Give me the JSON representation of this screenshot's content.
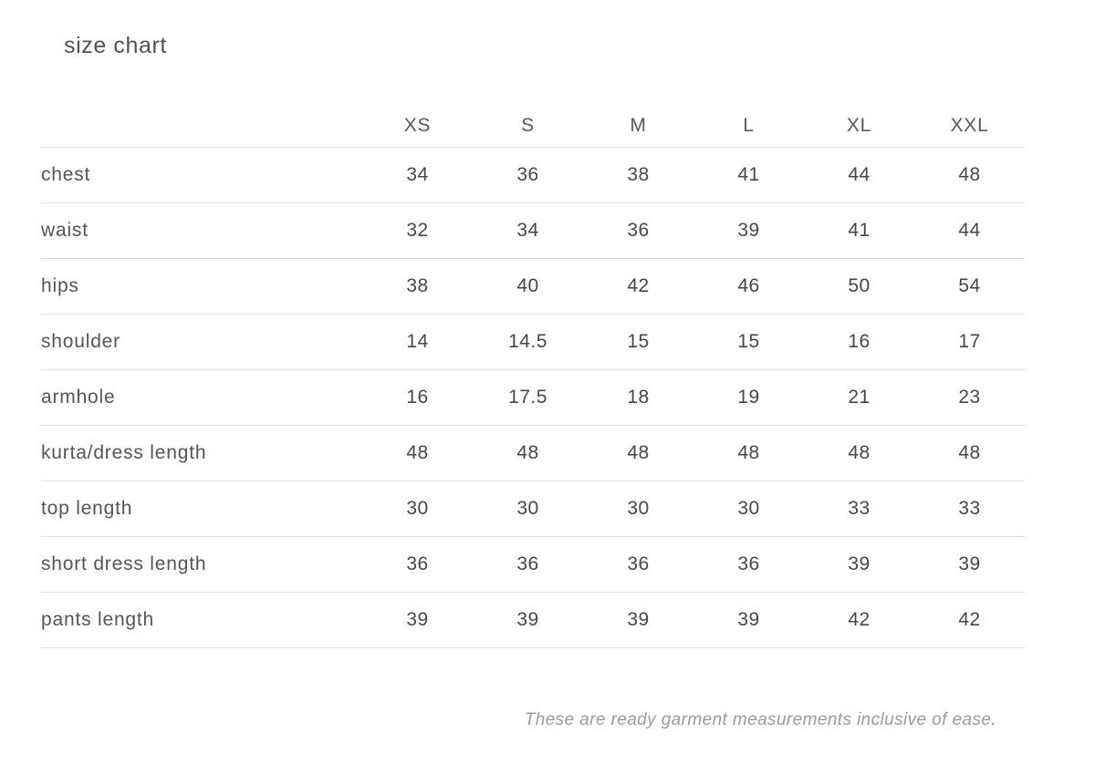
{
  "page": {
    "title": "size chart",
    "footnote": "These are ready garment measurements inclusive of ease."
  },
  "colors": {
    "background": "#ffffff",
    "title_text": "#525252",
    "header_text": "#595959",
    "label_text": "#555555",
    "value_text": "#474747",
    "divider_line": "#e0e0e0",
    "footnote_text": "#9b9b9b"
  },
  "chart_data": {
    "type": "table",
    "title": "size chart",
    "columns": [
      "XS",
      "S",
      "M",
      "L",
      "XL",
      "XXL"
    ],
    "rows": [
      {
        "label": "chest",
        "values": [
          "34",
          "36",
          "38",
          "41",
          "44",
          "48"
        ]
      },
      {
        "label": "waist",
        "values": [
          "32",
          "34",
          "36",
          "39",
          "41",
          "44"
        ]
      },
      {
        "label": "hips",
        "values": [
          "38",
          "40",
          "42",
          "46",
          "50",
          "54"
        ]
      },
      {
        "label": "shoulder",
        "values": [
          "14",
          "14.5",
          "15",
          "15",
          "16",
          "17"
        ]
      },
      {
        "label": "armhole",
        "values": [
          "16",
          "17.5",
          "18",
          "19",
          "21",
          "23"
        ]
      },
      {
        "label": "kurta/dress length",
        "values": [
          "48",
          "48",
          "48",
          "48",
          "48",
          "48"
        ]
      },
      {
        "label": "top length",
        "values": [
          "30",
          "30",
          "30",
          "30",
          "33",
          "33"
        ]
      },
      {
        "label": "short dress length",
        "values": [
          "36",
          "36",
          "36",
          "36",
          "39",
          "39"
        ]
      },
      {
        "label": "pants length",
        "values": [
          "39",
          "39",
          "39",
          "39",
          "42",
          "42"
        ]
      }
    ],
    "note": "These are ready garment measurements inclusive of ease."
  }
}
